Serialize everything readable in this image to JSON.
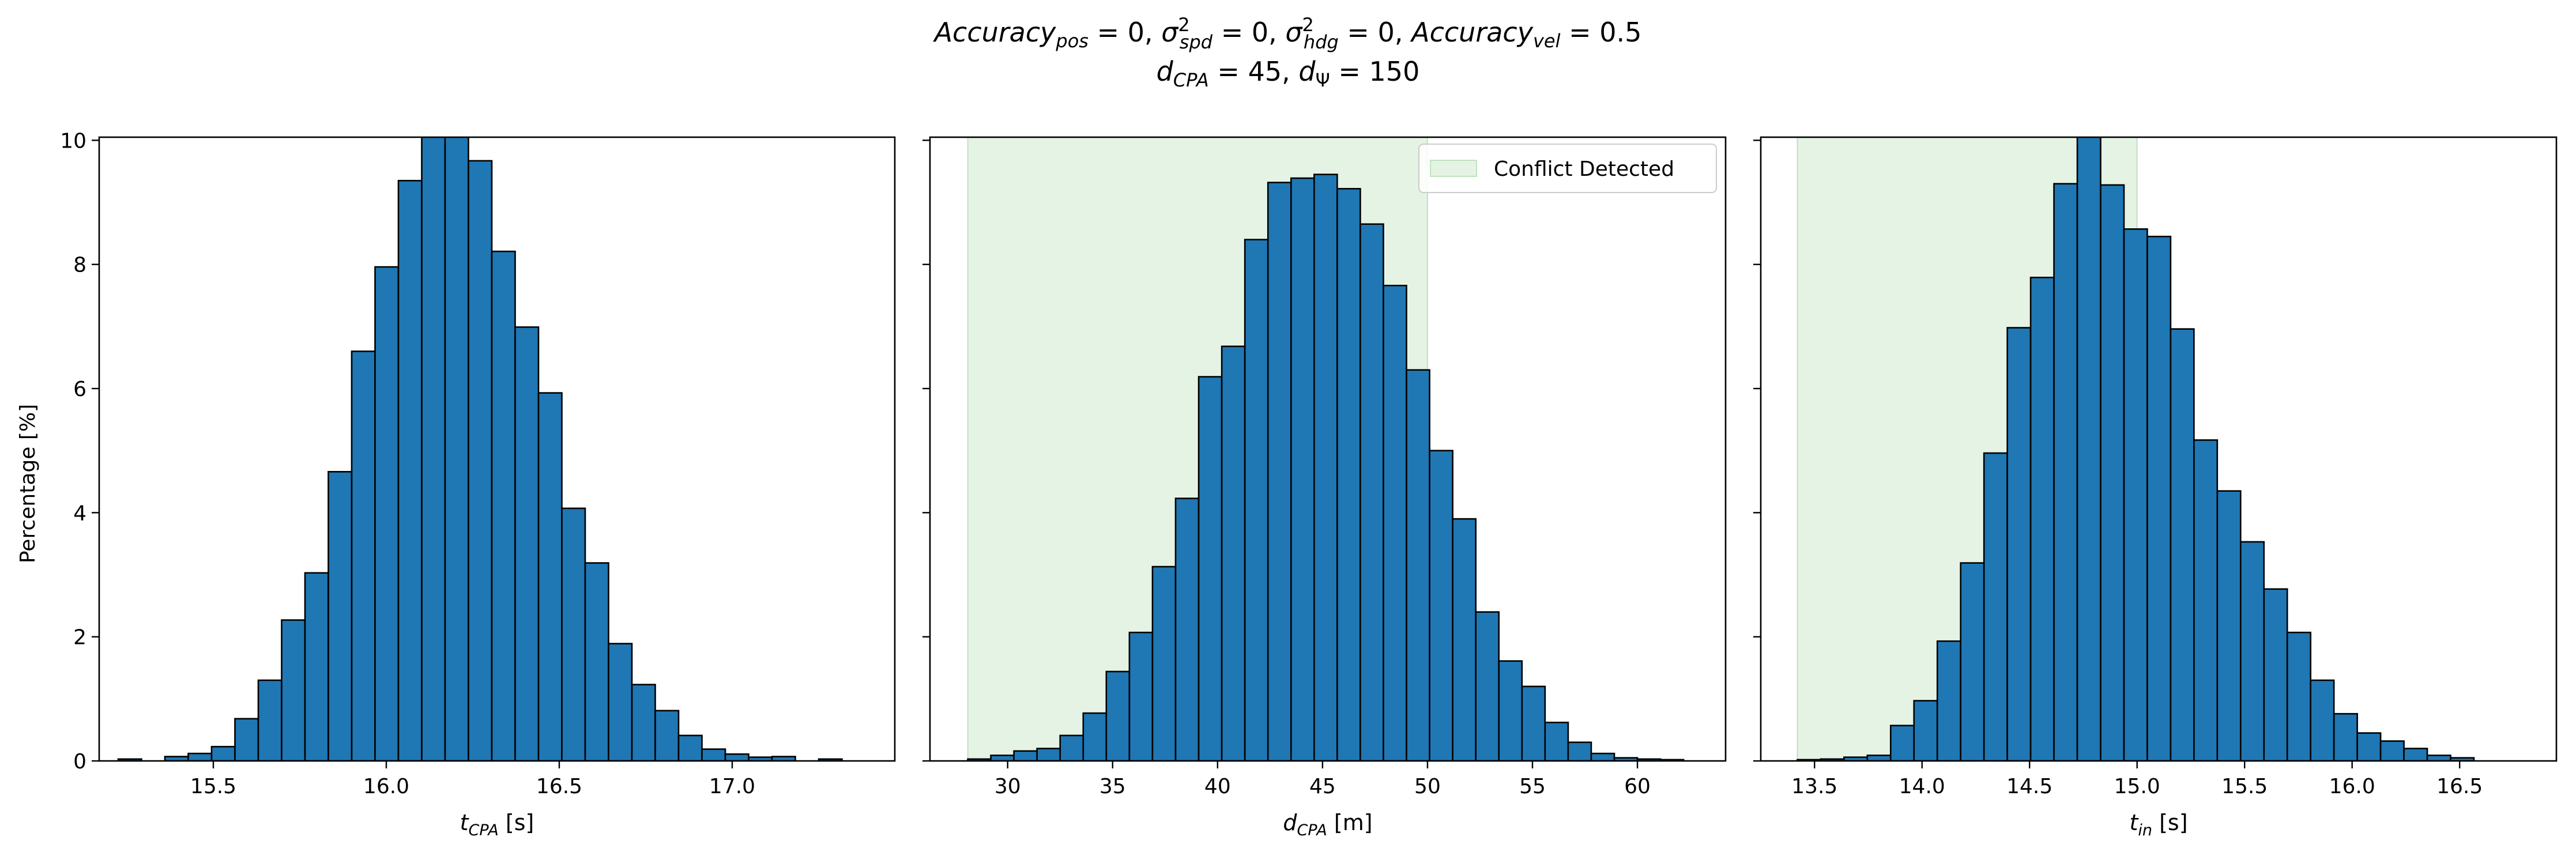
{
  "figure": {
    "title_line1": "Accuracy_pos = 0, σ²_spd = 0, σ²_hdg = 0, Accuracy_vel = 0.5",
    "title_line2": "d_CPA = 45, d_Ψ = 150",
    "shared_ylabel": "Percentage [%]"
  },
  "colors": {
    "bar_fill": "#1f77b4",
    "bar_edge": "#000000",
    "conflict_fill": "#2ca02c",
    "axis": "#000000"
  },
  "chart_data": [
    {
      "type": "bar",
      "xlabel": "t_CPA [s]",
      "ylabel": "Percentage [%]",
      "xlim": [
        15.17,
        17.47
      ],
      "ylim": [
        0,
        10.05
      ],
      "xticks": [
        15.5,
        16.0,
        16.5,
        17.0
      ],
      "xtick_labels": [
        "15.5",
        "16.0",
        "16.5",
        "17.0"
      ],
      "yticks": [
        0,
        2,
        4,
        6,
        8,
        10
      ],
      "ytick_labels": [
        "0",
        "2",
        "4",
        "6",
        "8",
        "10"
      ],
      "bin_start": 15.225,
      "bin_width": 0.0675,
      "values": [
        0.03,
        0.0,
        0.07,
        0.12,
        0.23,
        0.68,
        1.3,
        2.27,
        3.03,
        4.66,
        6.6,
        7.96,
        9.35,
        10.26,
        10.33,
        9.67,
        8.21,
        6.99,
        5.93,
        4.07,
        3.19,
        1.89,
        1.23,
        0.81,
        0.41,
        0.19,
        0.11,
        0.06,
        0.07,
        0.0,
        0.03
      ],
      "shaded_region": null,
      "legend": null
    },
    {
      "type": "bar",
      "xlabel": "d_CPA [m]",
      "ylabel": "",
      "xlim": [
        26.3,
        64.2
      ],
      "ylim": [
        0,
        10.05
      ],
      "xticks": [
        30,
        35,
        40,
        45,
        50,
        55,
        60
      ],
      "xtick_labels": [
        "30",
        "35",
        "40",
        "45",
        "50",
        "55",
        "60"
      ],
      "yticks": [
        0,
        2,
        4,
        6,
        8,
        10
      ],
      "ytick_labels": [
        "",
        "",
        "",
        "",
        "",
        ""
      ],
      "bin_start": 28.1,
      "bin_width": 1.1,
      "values": [
        0.03,
        0.09,
        0.16,
        0.2,
        0.41,
        0.77,
        1.44,
        2.07,
        3.13,
        4.23,
        6.19,
        6.68,
        8.4,
        9.32,
        9.39,
        9.45,
        9.22,
        8.65,
        7.66,
        6.3,
        5.0,
        3.9,
        2.4,
        1.61,
        1.2,
        0.62,
        0.3,
        0.12,
        0.05,
        0.03,
        0.02
      ],
      "shaded_region": [
        28.1,
        50.0
      ],
      "legend": {
        "label": "Conflict Detected",
        "placement": "upper right"
      }
    },
    {
      "type": "bar",
      "xlabel": "t_in [s]",
      "ylabel": "",
      "xlim": [
        13.25,
        16.95
      ],
      "ylim": [
        0,
        10.05
      ],
      "xticks": [
        13.5,
        14.0,
        14.5,
        15.0,
        15.5,
        16.0,
        16.5
      ],
      "xtick_labels": [
        "13.5",
        "14.0",
        "14.5",
        "15.0",
        "15.5",
        "16.0",
        "16.5"
      ],
      "yticks": [
        0,
        2,
        4,
        6,
        8,
        10
      ],
      "ytick_labels": [
        "",
        "",
        "",
        "",
        "",
        ""
      ],
      "bin_start": 13.42,
      "bin_width": 0.1085,
      "values": [
        0.02,
        0.03,
        0.06,
        0.09,
        0.57,
        0.97,
        1.93,
        3.19,
        4.96,
        6.98,
        7.79,
        9.3,
        10.28,
        9.28,
        8.57,
        8.45,
        6.96,
        5.17,
        4.35,
        3.53,
        2.77,
        2.07,
        1.3,
        0.76,
        0.45,
        0.32,
        0.2,
        0.09,
        0.05,
        0.0
      ],
      "shaded_region": [
        13.42,
        15.0
      ],
      "legend": null
    }
  ]
}
